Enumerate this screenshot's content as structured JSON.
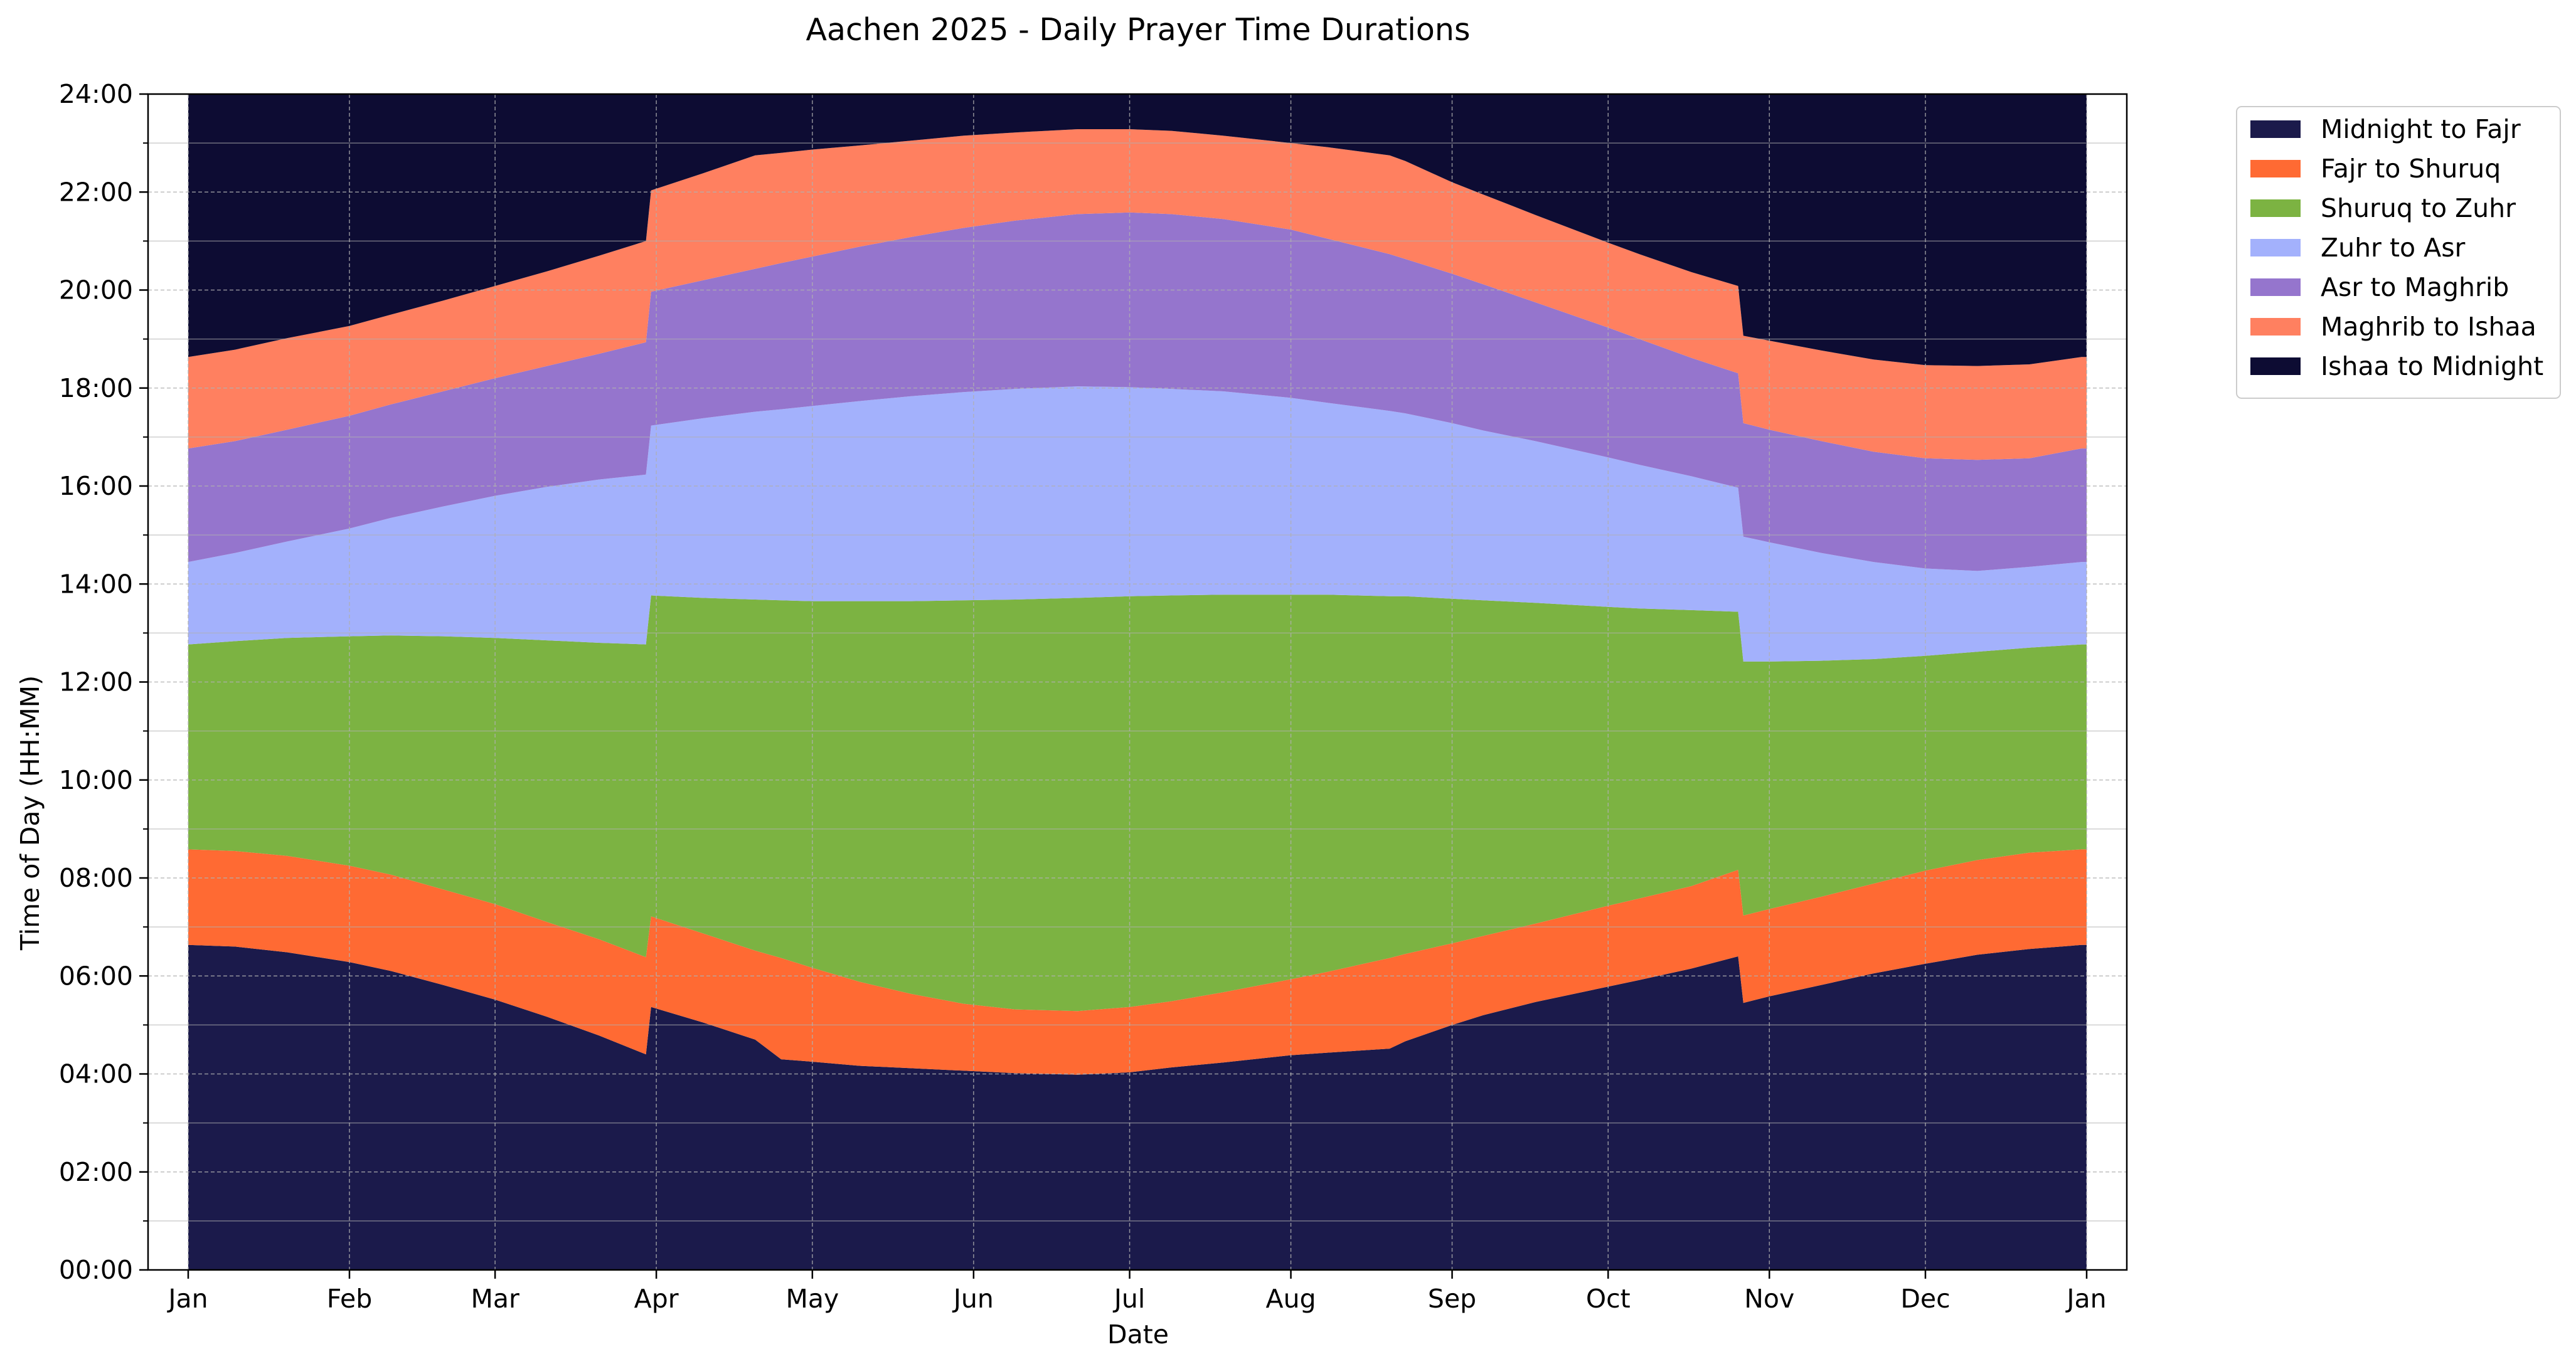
{
  "chart_data": {
    "type": "area",
    "title": "Aachen 2025 - Daily Prayer Time Durations",
    "xlabel": "Date",
    "ylabel": "Time of Day (HH:MM)",
    "x_unit": "day of year 2025",
    "xlim": [
      1,
      366
    ],
    "ylim": [
      "00:00",
      "24:00"
    ],
    "x_ticks": [
      "Jan",
      "Feb",
      "Mar",
      "Apr",
      "May",
      "Jun",
      "Jul",
      "Aug",
      "Sep",
      "Oct",
      "Nov",
      "Dec",
      "Jan"
    ],
    "y_ticks": [
      "00:00",
      "02:00",
      "04:00",
      "06:00",
      "08:00",
      "10:00",
      "12:00",
      "14:00",
      "16:00",
      "18:00",
      "20:00",
      "22:00",
      "24:00"
    ],
    "grid": true,
    "legend_position": "outside top-right",
    "series": [
      {
        "name": "Midnight to Fajr",
        "color": "#1b1a4b"
      },
      {
        "name": "Fajr to Shuruq",
        "color": "#ff6a33"
      },
      {
        "name": "Shuruq to Zuhr",
        "color": "#7cb342"
      },
      {
        "name": "Zuhr to Asr",
        "color": "#a3b1fc"
      },
      {
        "name": "Asr to Maghrib",
        "color": "#9575cd"
      },
      {
        "name": "Maghrib to Ishaa",
        "color": "#ff8060"
      },
      {
        "name": "Ishaa to Midnight",
        "color": "#0d0c33"
      }
    ],
    "boundaries": {
      "x": [
        1,
        10,
        20,
        32,
        40,
        50,
        60,
        70,
        80,
        89,
        90,
        100,
        110,
        115,
        121,
        130,
        140,
        150,
        160,
        172,
        182,
        190,
        200,
        213,
        220,
        232,
        235,
        244,
        250,
        260,
        274,
        280,
        290,
        299,
        300,
        305,
        315,
        325,
        335,
        345,
        355,
        365,
        366
      ],
      "fajr": [
        "06:38",
        "06:36",
        "06:29",
        "06:17",
        "06:06",
        "05:49",
        "05:31",
        "05:10",
        "04:47",
        "04:24",
        "05:22",
        "05:03",
        "04:42",
        "04:18",
        "04:15",
        "04:10",
        "04:07",
        "04:04",
        "04:01",
        "03:59",
        "04:02",
        "04:08",
        "04:14",
        "04:23",
        "04:26",
        "04:31",
        "04:40",
        "05:00",
        "05:12",
        "05:28",
        "05:47",
        "05:55",
        "06:09",
        "06:24",
        "05:27",
        "05:35",
        "05:49",
        "06:03",
        "06:15",
        "06:26",
        "06:33",
        "06:38",
        "06:38"
      ],
      "shuruq": [
        "08:35",
        "08:33",
        "08:27",
        "08:15",
        "08:04",
        "07:46",
        "07:28",
        "07:06",
        "06:45",
        "06:23",
        "07:13",
        "06:52",
        "06:31",
        "06:22",
        "06:10",
        "05:53",
        "05:38",
        "05:26",
        "05:19",
        "05:17",
        "05:22",
        "05:29",
        "05:40",
        "05:56",
        "06:05",
        "06:22",
        "06:27",
        "06:40",
        "06:49",
        "07:04",
        "07:26",
        "07:35",
        "07:50",
        "08:10",
        "07:14",
        "07:22",
        "07:37",
        "07:53",
        "08:09",
        "08:22",
        "08:31",
        "08:35",
        "08:35"
      ],
      "zuhr": [
        "12:46",
        "12:50",
        "12:54",
        "12:56",
        "12:57",
        "12:56",
        "12:54",
        "12:51",
        "12:48",
        "12:46",
        "13:46",
        "13:43",
        "13:41",
        "13:40",
        "13:39",
        "13:39",
        "13:39",
        "13:40",
        "13:41",
        "13:43",
        "13:45",
        "13:46",
        "13:47",
        "13:47",
        "13:47",
        "13:45",
        "13:45",
        "13:42",
        "13:40",
        "13:37",
        "13:32",
        "13:30",
        "13:28",
        "13:26",
        "12:25",
        "12:25",
        "12:26",
        "12:28",
        "12:32",
        "12:37",
        "12:42",
        "12:46",
        "12:46"
      ],
      "asr": [
        "14:27",
        "14:38",
        "14:52",
        "15:08",
        "15:21",
        "15:35",
        "15:48",
        "15:59",
        "16:08",
        "16:14",
        "17:14",
        "17:23",
        "17:31",
        "17:34",
        "17:38",
        "17:44",
        "17:50",
        "17:55",
        "17:59",
        "18:02",
        "18:01",
        "17:59",
        "17:56",
        "17:48",
        "17:42",
        "17:32",
        "17:29",
        "17:17",
        "17:08",
        "16:55",
        "16:35",
        "16:26",
        "16:12",
        "15:58",
        "14:58",
        "14:51",
        "14:38",
        "14:27",
        "14:19",
        "14:16",
        "14:21",
        "14:27",
        "14:27"
      ],
      "maghrib": [
        "16:46",
        "16:55",
        "17:09",
        "17:26",
        "17:40",
        "17:56",
        "18:12",
        "18:27",
        "18:42",
        "18:56",
        "19:58",
        "20:12",
        "20:26",
        "20:33",
        "20:41",
        "20:53",
        "21:05",
        "21:16",
        "21:25",
        "21:33",
        "21:35",
        "21:33",
        "21:27",
        "21:14",
        "21:03",
        "20:44",
        "20:38",
        "20:20",
        "20:07",
        "19:45",
        "19:14",
        "19:00",
        "18:37",
        "18:18",
        "17:17",
        "17:09",
        "16:55",
        "16:42",
        "16:34",
        "16:32",
        "16:34",
        "16:46",
        "16:46"
      ],
      "ishaa": [
        "18:38",
        "18:47",
        "19:01",
        "19:16",
        "19:30",
        "19:47",
        "20:05",
        "20:23",
        "20:42",
        "21:00",
        "22:02",
        "22:23",
        "22:45",
        "22:48",
        "22:52",
        "22:57",
        "23:03",
        "23:09",
        "23:13",
        "23:17",
        "23:17",
        "23:15",
        "23:09",
        "23:00",
        "22:55",
        "22:45",
        "22:38",
        "22:12",
        "21:57",
        "21:32",
        "20:58",
        "20:44",
        "20:22",
        "20:05",
        "19:04",
        "18:58",
        "18:46",
        "18:35",
        "18:28",
        "18:27",
        "18:29",
        "18:38",
        "18:38"
      ]
    }
  }
}
